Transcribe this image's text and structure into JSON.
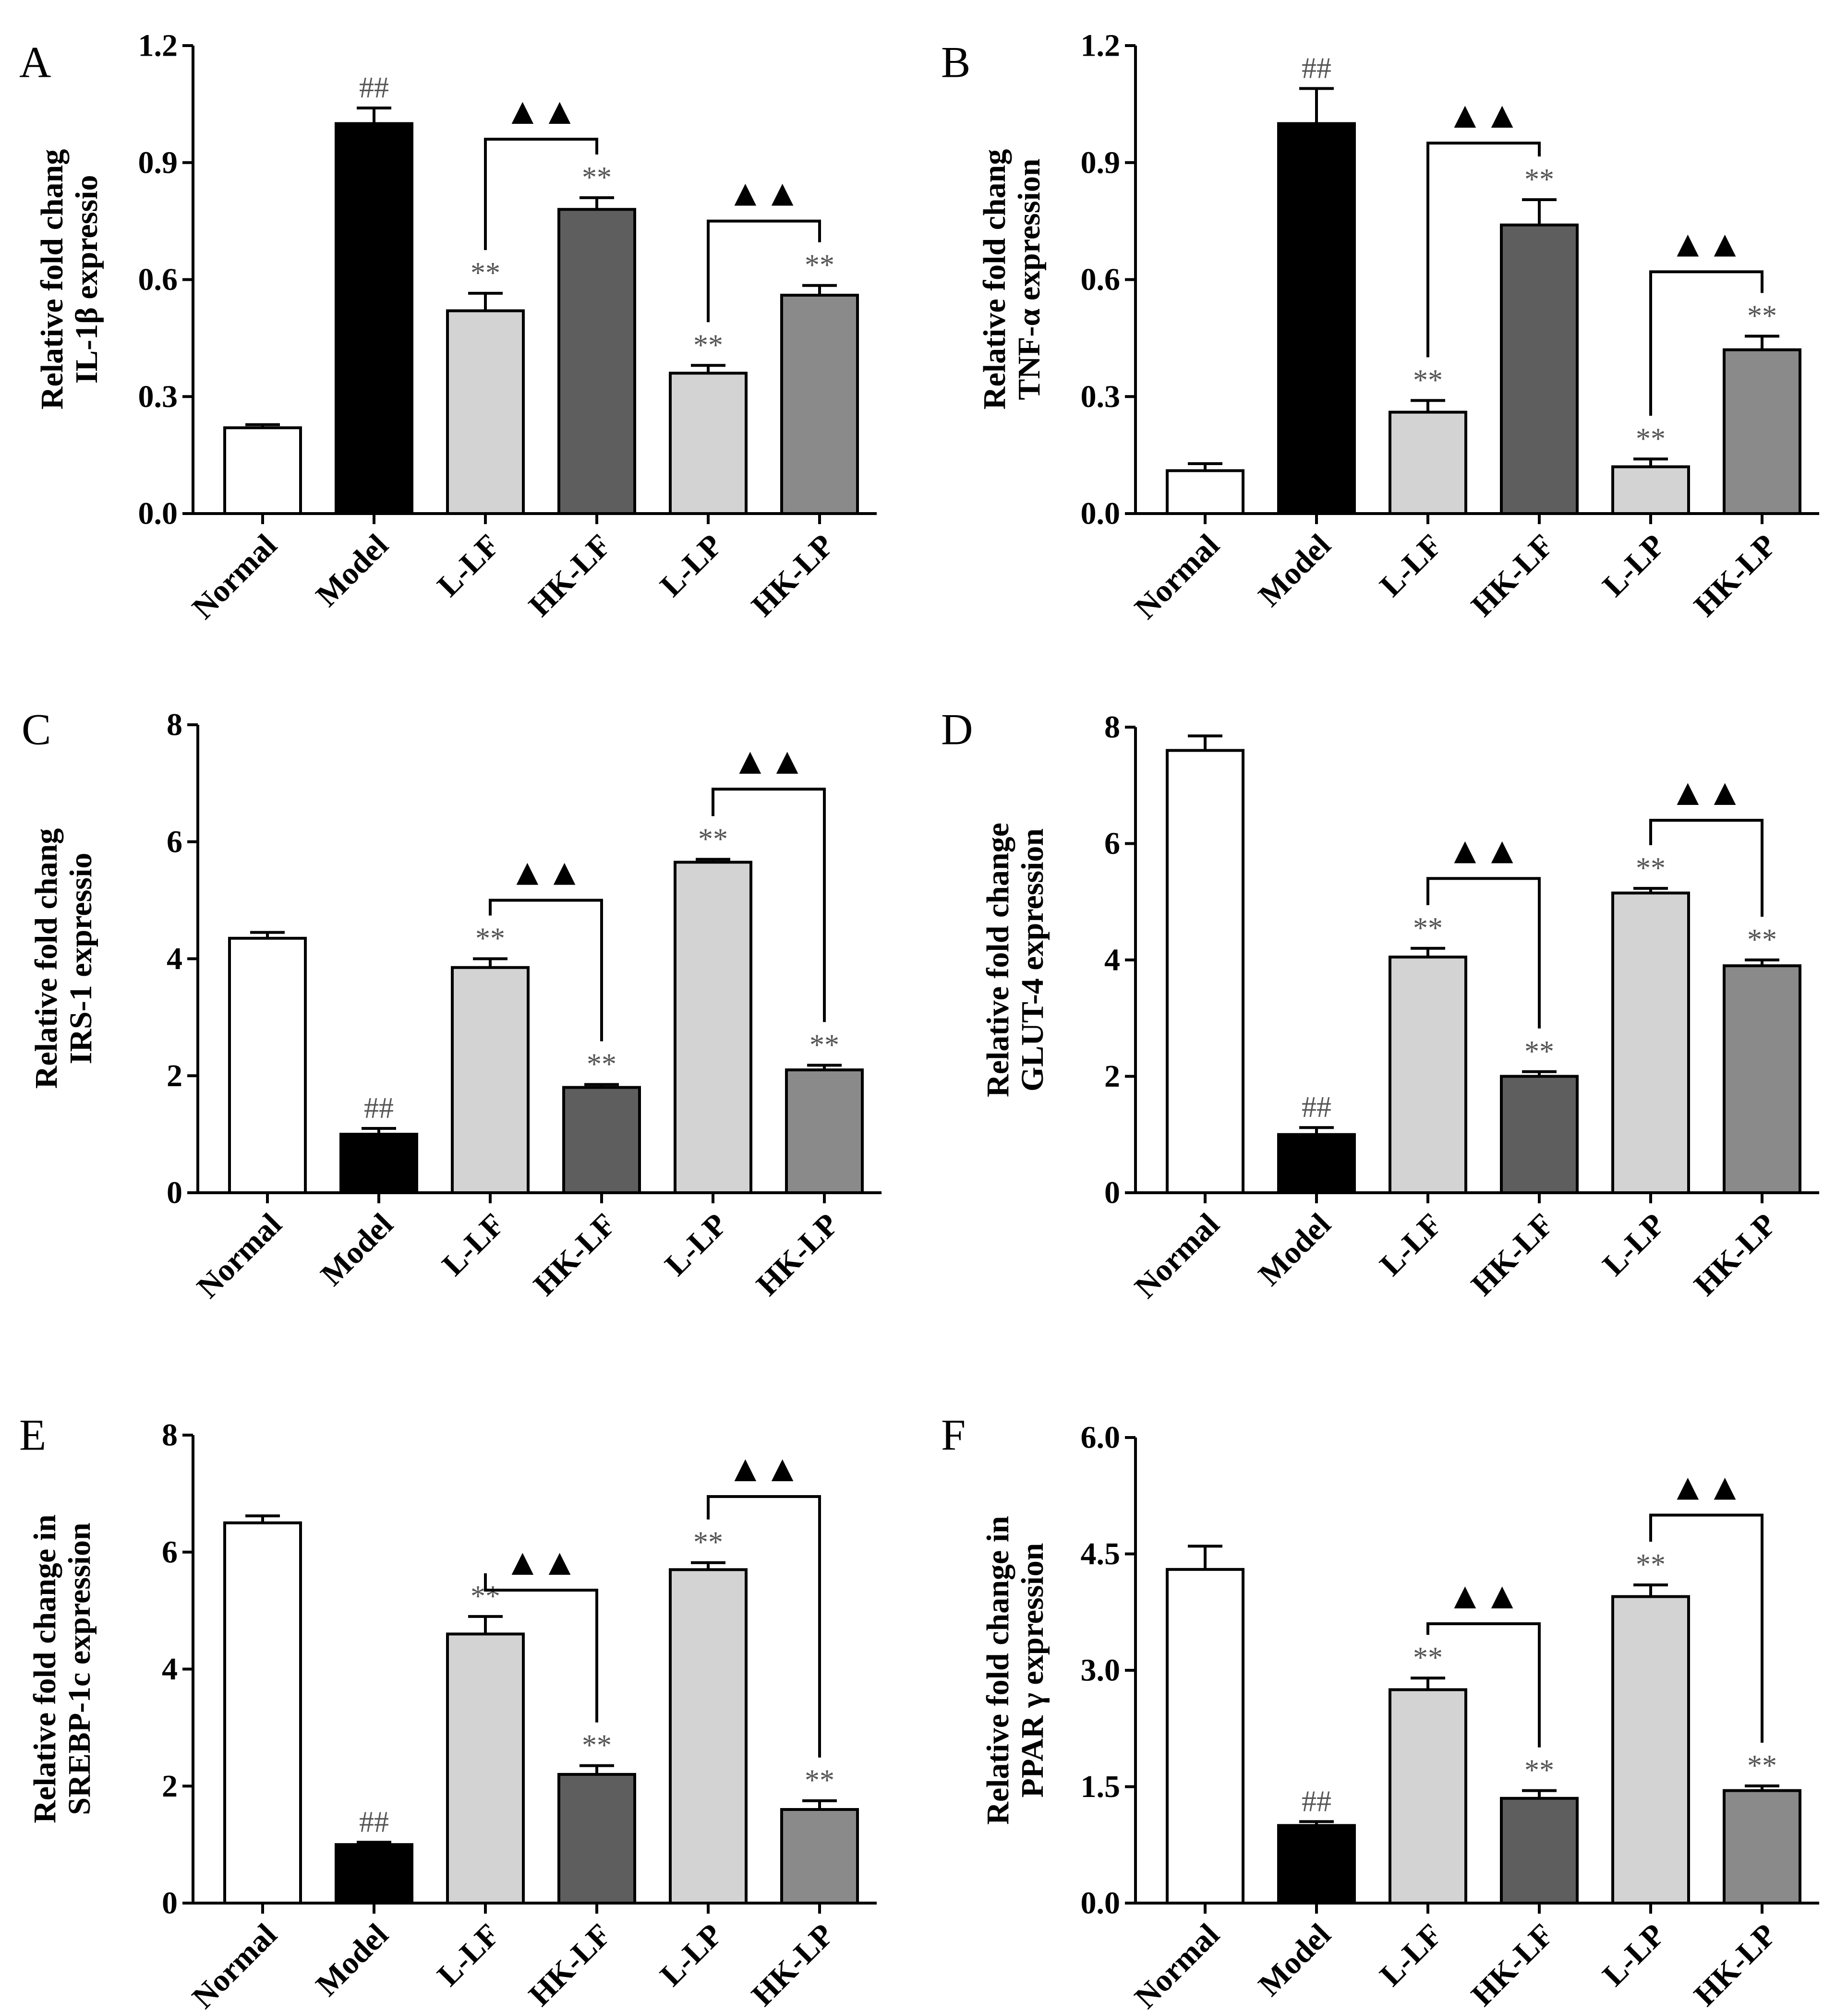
{
  "chart_data": [
    {
      "type": "bar",
      "panel": "A",
      "ylabel_lines": [
        "Relative fold chang",
        "IL-1β expressio"
      ],
      "ylim": [
        0,
        1.2
      ],
      "yticks": [
        "0.0",
        "0.3",
        "0.6",
        "0.9",
        "1.2"
      ],
      "categories": [
        "Normal",
        "Model",
        "L-LF",
        "HK-LF",
        "L-LP",
        "HK-LP"
      ],
      "values": [
        0.22,
        1.0,
        0.52,
        0.78,
        0.36,
        0.56
      ],
      "errors": [
        0.008,
        0.04,
        0.045,
        0.03,
        0.02,
        0.025
      ],
      "bar_colors": [
        "#ffffff",
        "#000000",
        "#d3d3d3",
        "#5e5e5e",
        "#d3d3d3",
        "#8a8a8a"
      ],
      "annotations": [
        "",
        "##",
        "**",
        "**",
        "**",
        "**"
      ],
      "brackets": [
        {
          "from": 2,
          "to": 3,
          "level": 0.96,
          "label": "▲▲"
        },
        {
          "from": 4,
          "to": 5,
          "level": 0.75,
          "label": "▲▲"
        }
      ]
    },
    {
      "type": "bar",
      "panel": "B",
      "ylabel_lines": [
        "Relative fold chang",
        "TNF-α expression"
      ],
      "ylim": [
        0,
        1.2
      ],
      "yticks": [
        "0.0",
        "0.3",
        "0.6",
        "0.9",
        "1.2"
      ],
      "categories": [
        "Normal",
        "Model",
        "L-LF",
        "HK-LF",
        "L-LP",
        "HK-LP"
      ],
      "values": [
        0.11,
        1.0,
        0.26,
        0.74,
        0.12,
        0.42
      ],
      "errors": [
        0.018,
        0.09,
        0.03,
        0.065,
        0.02,
        0.035
      ],
      "bar_colors": [
        "#ffffff",
        "#000000",
        "#d3d3d3",
        "#5e5e5e",
        "#d3d3d3",
        "#8a8a8a"
      ],
      "annotations": [
        "",
        "##",
        "**",
        "**",
        "**",
        "**"
      ],
      "brackets": [
        {
          "from": 2,
          "to": 3,
          "level": 0.95,
          "label": "▲▲"
        },
        {
          "from": 4,
          "to": 5,
          "level": 0.62,
          "label": "▲▲"
        }
      ]
    },
    {
      "type": "bar",
      "panel": "C",
      "ylabel_lines": [
        "Relative fold chang",
        "IRS-1 expressio"
      ],
      "ylim": [
        0,
        8
      ],
      "yticks": [
        "0",
        "2",
        "4",
        "6",
        "8"
      ],
      "categories": [
        "Normal",
        "Model",
        "L-LF",
        "HK-LF",
        "L-LP",
        "HK-LP"
      ],
      "values": [
        4.35,
        1.0,
        3.85,
        1.8,
        5.65,
        2.1
      ],
      "errors": [
        0.1,
        0.1,
        0.15,
        0.05,
        0.05,
        0.08
      ],
      "bar_colors": [
        "#ffffff",
        "#000000",
        "#d3d3d3",
        "#5e5e5e",
        "#d3d3d3",
        "#8a8a8a"
      ],
      "annotations": [
        "",
        "##",
        "**",
        "**",
        "**",
        "**"
      ],
      "brackets": [
        {
          "from": 2,
          "to": 3,
          "level": 5.0,
          "label": "▲▲"
        },
        {
          "from": 4,
          "to": 5,
          "level": 6.9,
          "label": "▲▲"
        }
      ]
    },
    {
      "type": "bar",
      "panel": "D",
      "ylabel_lines": [
        "Relative fold change",
        "GLUT-4 expression"
      ],
      "ylim": [
        0,
        8
      ],
      "yticks": [
        "0",
        "2",
        "4",
        "6",
        "8"
      ],
      "categories": [
        "Normal",
        "Model",
        "L-LF",
        "HK-LF",
        "L-LP",
        "HK-LP"
      ],
      "values": [
        7.6,
        1.0,
        4.05,
        2.0,
        5.15,
        3.9
      ],
      "errors": [
        0.25,
        0.12,
        0.15,
        0.08,
        0.08,
        0.1
      ],
      "bar_colors": [
        "#ffffff",
        "#000000",
        "#d3d3d3",
        "#5e5e5e",
        "#d3d3d3",
        "#8a8a8a"
      ],
      "annotations": [
        "",
        "##",
        "**",
        "**",
        "**",
        "**"
      ],
      "brackets": [
        {
          "from": 2,
          "to": 3,
          "level": 5.4,
          "label": "▲▲"
        },
        {
          "from": 4,
          "to": 5,
          "level": 6.4,
          "label": "▲▲"
        }
      ]
    },
    {
      "type": "bar",
      "panel": "E",
      "ylabel_lines": [
        "Relative fold change in",
        "SREBP-1c expression"
      ],
      "ylim": [
        0,
        8
      ],
      "yticks": [
        "0",
        "2",
        "4",
        "6",
        "8"
      ],
      "categories": [
        "Normal",
        "Model",
        "L-LF",
        "HK-LF",
        "L-LP",
        "HK-LP"
      ],
      "values": [
        6.5,
        1.0,
        4.6,
        2.2,
        5.7,
        1.6
      ],
      "errors": [
        0.12,
        0.04,
        0.3,
        0.15,
        0.12,
        0.15
      ],
      "bar_colors": [
        "#ffffff",
        "#000000",
        "#d3d3d3",
        "#5e5e5e",
        "#d3d3d3",
        "#8a8a8a"
      ],
      "annotations": [
        "",
        "##",
        "**",
        "**",
        "**",
        "**"
      ],
      "brackets": [
        {
          "from": 2,
          "to": 3,
          "level": 5.35,
          "label": "▲▲"
        },
        {
          "from": 4,
          "to": 5,
          "level": 6.95,
          "label": "▲▲"
        }
      ]
    },
    {
      "type": "bar",
      "panel": "F",
      "ylabel_lines": [
        "Relative fold change in",
        "PPAR γ expression"
      ],
      "ylim": [
        0,
        6
      ],
      "yticks": [
        "0.0",
        "1.5",
        "3.0",
        "4.5",
        "6.0"
      ],
      "categories": [
        "Normal",
        "Model",
        "L-LF",
        "HK-LF",
        "L-LP",
        "HK-LP"
      ],
      "values": [
        4.3,
        1.0,
        2.75,
        1.35,
        3.95,
        1.45
      ],
      "errors": [
        0.3,
        0.05,
        0.15,
        0.1,
        0.15,
        0.06
      ],
      "bar_colors": [
        "#ffffff",
        "#000000",
        "#d3d3d3",
        "#5e5e5e",
        "#d3d3d3",
        "#8a8a8a"
      ],
      "annotations": [
        "",
        "##",
        "**",
        "**",
        "**",
        "**"
      ],
      "brackets": [
        {
          "from": 2,
          "to": 3,
          "level": 3.6,
          "label": "▲▲"
        },
        {
          "from": 4,
          "to": 5,
          "level": 5.0,
          "label": "▲▲"
        }
      ]
    }
  ]
}
